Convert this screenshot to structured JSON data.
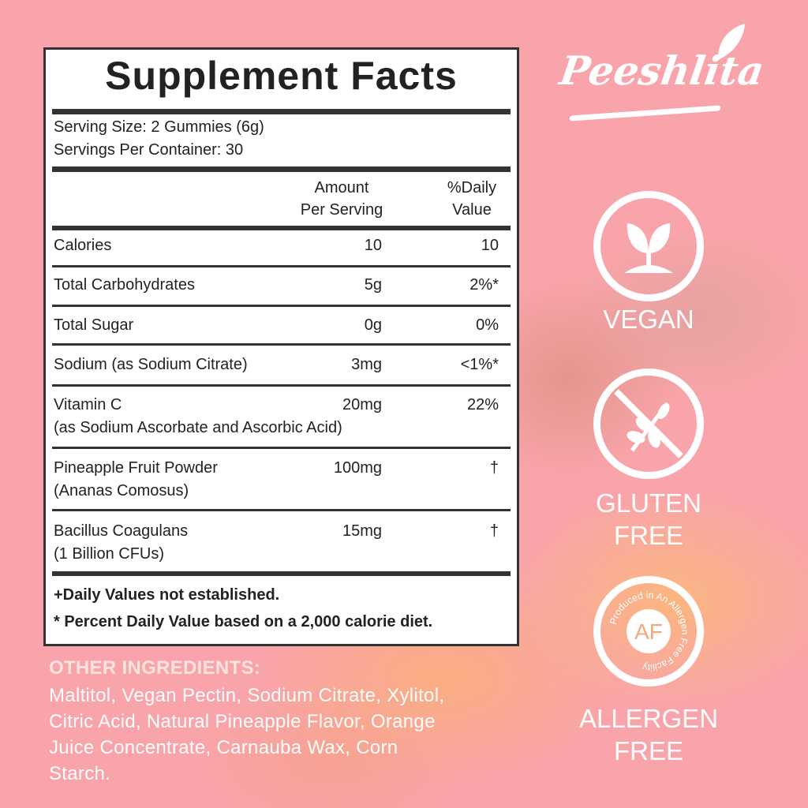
{
  "facts": {
    "title": "Supplement Facts",
    "serving_size": "Serving Size: 2 Gummies (6g)",
    "servings_per_container": "Servings Per Container: 30",
    "col_amount_1": "Amount",
    "col_amount_2": "Per Serving",
    "col_dv_1": "%Daily",
    "col_dv_2": "Value",
    "rows": [
      {
        "name": "Calories",
        "amount": "10",
        "dv": "10"
      },
      {
        "name": "Total Carbohydrates",
        "amount": "5g",
        "dv": "2%*"
      },
      {
        "name": "Total Sugar",
        "amount": "0g",
        "dv": "0%"
      },
      {
        "name": "Sodium (as Sodium Citrate)",
        "amount": "3mg",
        "dv": "<1%*"
      },
      {
        "name": "Vitamin C",
        "sub": "(as Sodium Ascorbate and Ascorbic Acid)",
        "amount": "20mg",
        "dv": "22%"
      },
      {
        "name": "Pineapple Fruit Powder",
        "sub": "(Ananas Comosus)",
        "amount": "100mg",
        "dv": "†"
      },
      {
        "name": "Bacillus Coagulans",
        "sub": "(1 Billion CFUs)",
        "amount": "15mg",
        "dv": "†"
      }
    ],
    "footnote_1": "+Daily Values not established.",
    "footnote_2": "* Percent Daily Value based on a 2,000 calorie diet."
  },
  "brand": {
    "logo": "Peeshlita"
  },
  "badges": [
    {
      "icon": "sprout-icon",
      "label_1": "VEGAN"
    },
    {
      "icon": "no-wheat-icon",
      "label_1": "GLUTEN",
      "label_2": "FREE"
    },
    {
      "icon": "allergen-free-seal-icon",
      "seal_center": "AF",
      "seal_ring": "Produced in An Allergen Free Facility",
      "label_1": "ALLERGEN",
      "label_2": "FREE"
    }
  ],
  "other_ingredients": {
    "heading": "OTHER INGREDIENTS:",
    "lines": [
      "Maltitol, Vegan Pectin, Sodium Citrate, Xylitol,",
      "Citric Acid, Natural Pineapple Flavor, Orange",
      "Juice Concentrate, Carnauba Wax, Corn",
      "Starch."
    ]
  },
  "colors": {
    "background": "#f9a4aa",
    "text_dark": "#222222"
  }
}
